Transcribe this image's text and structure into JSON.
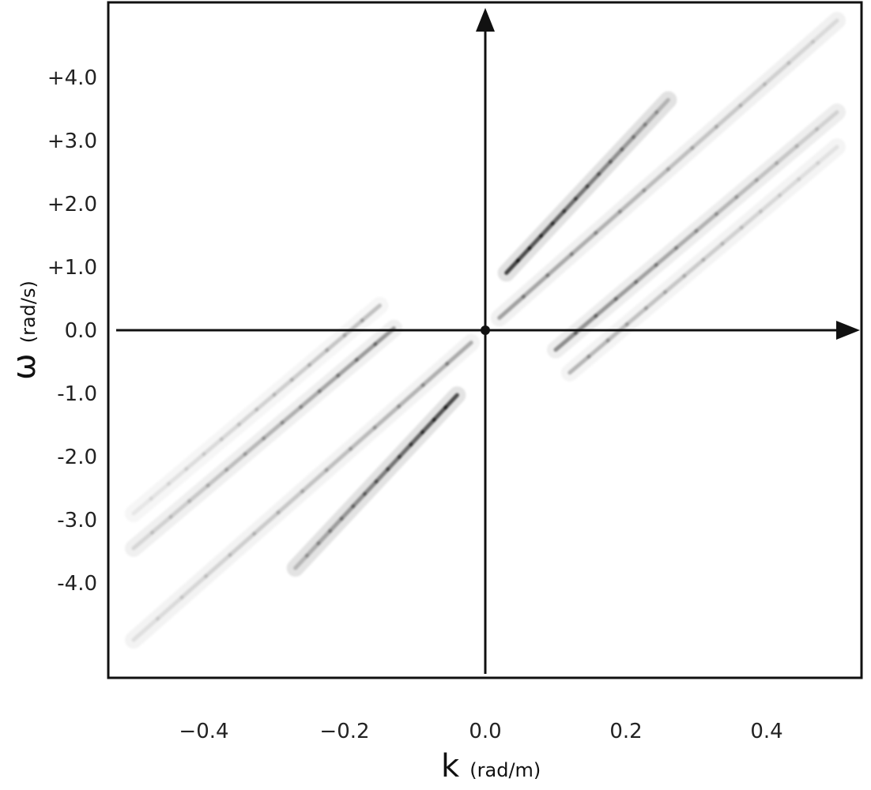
{
  "chart_data": {
    "type": "heatmap",
    "title": "",
    "xlabel": {
      "symbol": "k",
      "unit": "(rad/m)"
    },
    "ylabel": {
      "symbol": "ω",
      "unit": "(rad/s)"
    },
    "xlim": [
      -0.52,
      0.52
    ],
    "ylim": [
      -5.3,
      5.3
    ],
    "x_ticks": [
      {
        "value": -0.4,
        "label": "−0.4"
      },
      {
        "value": -0.2,
        "label": "−0.2"
      },
      {
        "value": 0.0,
        "label": "0.0"
      },
      {
        "value": 0.2,
        "label": "0.2"
      },
      {
        "value": 0.4,
        "label": "0.4"
      }
    ],
    "y_ticks": [
      {
        "value": 4.0,
        "label": "+4.0"
      },
      {
        "value": 3.0,
        "label": "+3.0"
      },
      {
        "value": 2.0,
        "label": "+2.0"
      },
      {
        "value": 1.0,
        "label": "+1.0"
      },
      {
        "value": 0.0,
        "label": "0.0"
      },
      {
        "value": -1.0,
        "label": "-1.0"
      },
      {
        "value": -2.0,
        "label": "-2.0"
      },
      {
        "value": -3.0,
        "label": "-3.0"
      },
      {
        "value": -4.0,
        "label": "-4.0"
      }
    ],
    "grid": false,
    "colormap": "grayscale (white = low, black = high)",
    "ridges": [
      {
        "x0": 0.03,
        "x1": 0.26,
        "slope": 11.9,
        "intercept": 0.55,
        "intensity": 0.95
      },
      {
        "x0": -0.04,
        "x1": -0.27,
        "slope": 11.9,
        "intercept": -0.55,
        "intensity": 0.9
      },
      {
        "x0": 0.02,
        "x1": 0.5,
        "slope": 9.8,
        "intercept": 0.0,
        "intensity": 0.45
      },
      {
        "x0": -0.02,
        "x1": -0.5,
        "slope": 9.8,
        "intercept": 0.0,
        "intensity": 0.4
      },
      {
        "x0": 0.1,
        "x1": 0.5,
        "slope": 9.4,
        "intercept": -1.25,
        "intensity": 0.55
      },
      {
        "x0": -0.13,
        "x1": -0.5,
        "slope": 9.4,
        "intercept": 1.25,
        "intensity": 0.5
      },
      {
        "x0": 0.12,
        "x1": 0.5,
        "slope": 9.4,
        "intercept": -1.8,
        "intensity": 0.35
      },
      {
        "x0": -0.15,
        "x1": -0.5,
        "slope": 9.4,
        "intercept": 1.8,
        "intensity": 0.3
      }
    ],
    "peak": {
      "x": 0.0,
      "y": 0.0,
      "intensity": 1.0
    }
  }
}
